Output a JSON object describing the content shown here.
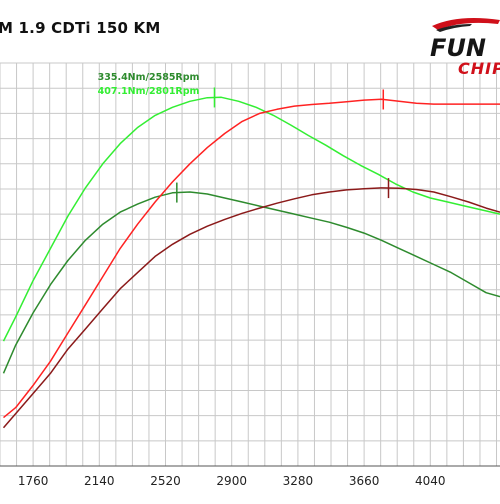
{
  "title": "M 1.9 CDTi 150 KM",
  "logo": {
    "main_text": "FUN",
    "sub_text": "CHIP"
  },
  "colors": {
    "torque_stock": "#2e8b2e",
    "torque_tuned": "#33ee33",
    "power_stock": "#8b1a1a",
    "power_tuned": "#ff2222",
    "grid": "#c8c8c8",
    "background": "#ffffff"
  },
  "chart_data": {
    "type": "line",
    "title": "M 1.9 CDTi 150 KM",
    "xlabel": "",
    "ylabel": "",
    "xlim": [
      1570,
      4440
    ],
    "ylim": [
      0,
      1
    ],
    "x_ticks": [
      1760,
      2140,
      2520,
      2900,
      3280,
      3660,
      4040
    ],
    "grid": true,
    "annotations": [
      {
        "text": "335.4Nm/2585Rpm",
        "series": "torque_stock",
        "x": 2585
      },
      {
        "text": "407.1Nm/2801Rpm",
        "series": "torque_tuned",
        "x": 2801
      }
    ],
    "peak_markers": [
      {
        "series": "torque_stock",
        "x": 2585
      },
      {
        "series": "torque_tuned",
        "x": 2801
      },
      {
        "series": "power_tuned",
        "x": 3770
      },
      {
        "series": "power_stock",
        "x": 3800
      }
    ],
    "series": [
      {
        "id": "torque_tuned",
        "color": "#33ee33",
        "x": [
          1590,
          1660,
          1760,
          1860,
          1960,
          2060,
          2160,
          2260,
          2360,
          2460,
          2560,
          2660,
          2760,
          2840,
          2940,
          3040,
          3140,
          3240,
          3340,
          3440,
          3540,
          3640,
          3740,
          3840,
          3940,
          4040,
          4140,
          4240,
          4340,
          4440
        ],
        "y": [
          0.31,
          0.37,
          0.46,
          0.54,
          0.62,
          0.69,
          0.75,
          0.8,
          0.84,
          0.87,
          0.89,
          0.905,
          0.914,
          0.915,
          0.905,
          0.89,
          0.87,
          0.846,
          0.82,
          0.796,
          0.77,
          0.746,
          0.724,
          0.7,
          0.68,
          0.665,
          0.655,
          0.645,
          0.635,
          0.625
        ]
      },
      {
        "id": "torque_stock",
        "color": "#2e8b2e",
        "x": [
          1590,
          1660,
          1760,
          1860,
          1960,
          2060,
          2160,
          2260,
          2360,
          2460,
          2560,
          2660,
          2760,
          2860,
          2960,
          3060,
          3160,
          3260,
          3360,
          3460,
          3560,
          3660,
          3760,
          3860,
          3960,
          4060,
          4160,
          4260,
          4360,
          4440
        ],
        "y": [
          0.23,
          0.3,
          0.38,
          0.45,
          0.51,
          0.56,
          0.6,
          0.63,
          0.65,
          0.667,
          0.678,
          0.68,
          0.675,
          0.665,
          0.655,
          0.645,
          0.635,
          0.625,
          0.615,
          0.605,
          0.592,
          0.578,
          0.56,
          0.54,
          0.52,
          0.5,
          0.48,
          0.455,
          0.43,
          0.42
        ]
      },
      {
        "id": "power_tuned",
        "color": "#ff2222",
        "x": [
          1590,
          1660,
          1760,
          1860,
          1960,
          2060,
          2160,
          2260,
          2360,
          2460,
          2560,
          2660,
          2760,
          2860,
          2960,
          3060,
          3160,
          3260,
          3360,
          3460,
          3560,
          3660,
          3760,
          3860,
          3960,
          4060,
          4160,
          4260,
          4360,
          4440
        ],
        "y": [
          0.12,
          0.145,
          0.2,
          0.26,
          0.33,
          0.4,
          0.47,
          0.54,
          0.6,
          0.655,
          0.705,
          0.75,
          0.79,
          0.825,
          0.855,
          0.875,
          0.885,
          0.893,
          0.897,
          0.9,
          0.904,
          0.908,
          0.91,
          0.905,
          0.9,
          0.898,
          0.898,
          0.898,
          0.898,
          0.898
        ]
      },
      {
        "id": "power_stock",
        "color": "#8b1a1a",
        "x": [
          1590,
          1660,
          1760,
          1860,
          1960,
          2060,
          2160,
          2260,
          2360,
          2460,
          2560,
          2660,
          2760,
          2860,
          2960,
          3060,
          3160,
          3260,
          3360,
          3460,
          3560,
          3660,
          3760,
          3860,
          3960,
          4060,
          4160,
          4260,
          4360,
          4440
        ],
        "y": [
          0.095,
          0.13,
          0.18,
          0.23,
          0.29,
          0.34,
          0.39,
          0.44,
          0.48,
          0.52,
          0.55,
          0.575,
          0.595,
          0.612,
          0.627,
          0.64,
          0.652,
          0.663,
          0.673,
          0.68,
          0.685,
          0.688,
          0.69,
          0.689,
          0.686,
          0.68,
          0.668,
          0.655,
          0.64,
          0.63
        ]
      }
    ]
  }
}
